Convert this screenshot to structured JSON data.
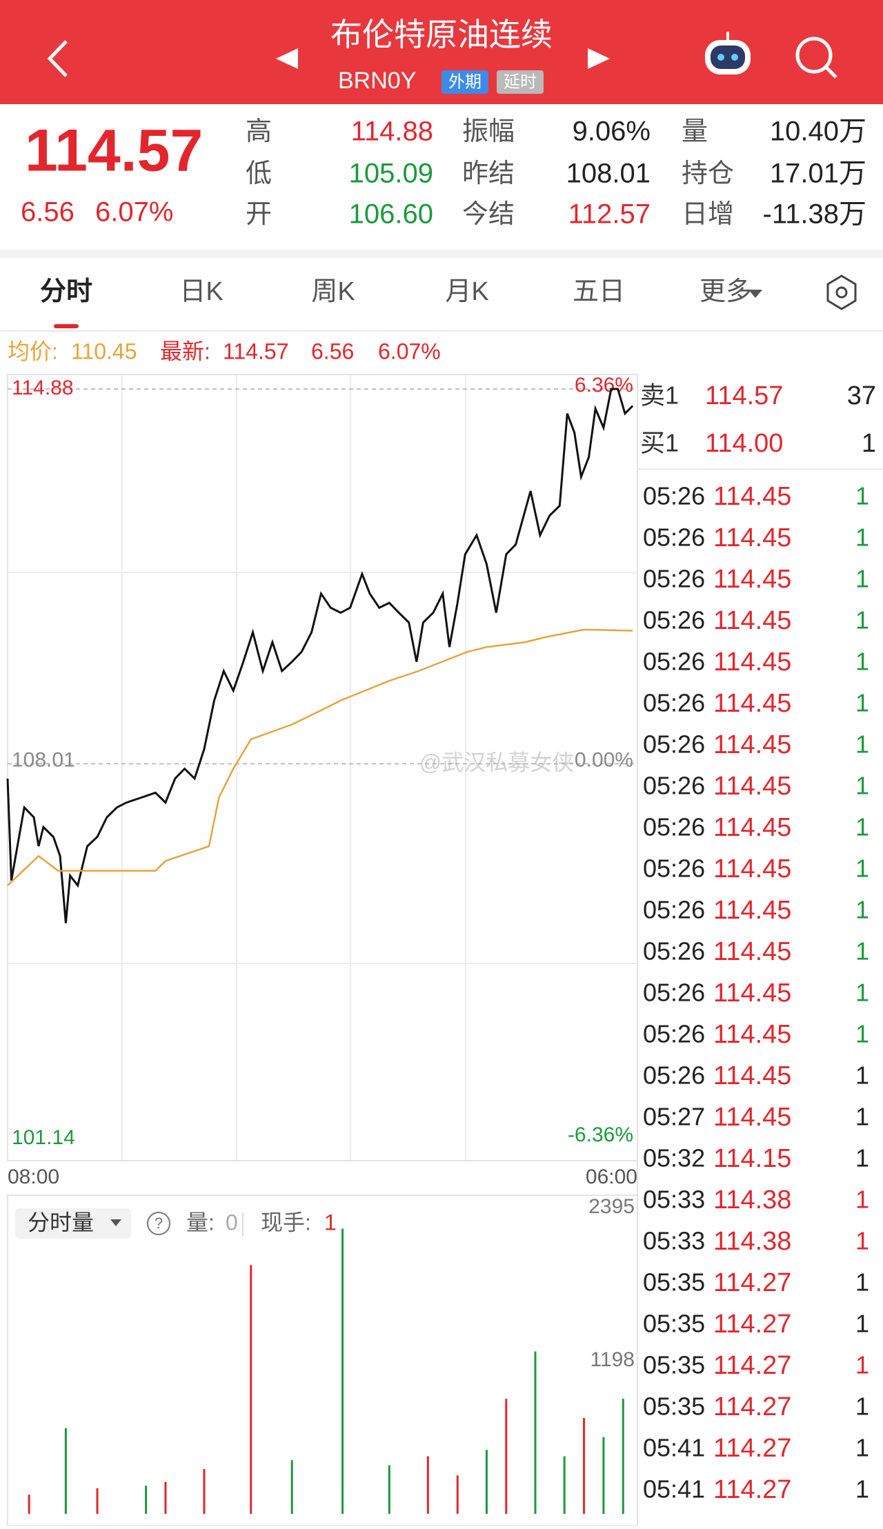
{
  "header": {
    "title": "布伦特原油连续",
    "code": "BRN0Y",
    "tags": [
      "外期",
      "延时"
    ]
  },
  "quote": {
    "price": "114.57",
    "change": "6.56",
    "change_pct": "6.07%",
    "stats": [
      [
        {
          "label": "高",
          "value": "114.88",
          "color": "#e3262d"
        },
        {
          "label": "振幅",
          "value": "9.06%"
        },
        {
          "label": "量",
          "value": "10.40万"
        }
      ],
      [
        {
          "label": "低",
          "value": "105.09",
          "color": "#1a9a3a"
        },
        {
          "label": "昨结",
          "value": "108.01"
        },
        {
          "label": "持仓",
          "value": "17.01万"
        }
      ],
      [
        {
          "label": "开",
          "value": "106.60",
          "color": "#1a9a3a"
        },
        {
          "label": "今结",
          "value": "112.57",
          "color": "#e3262d"
        },
        {
          "label": "日增",
          "value": "-11.38万"
        }
      ]
    ]
  },
  "tabs": [
    "分时",
    "日K",
    "周K",
    "月K",
    "五日",
    "更多"
  ],
  "info": {
    "avg_label": "均价:",
    "avg": "110.45",
    "last_label": "最新:",
    "last": "114.57",
    "change": "6.56",
    "change_pct": "6.07%"
  },
  "watermark": "@武汉私募女侠",
  "chart_data": [
    {
      "type": "line",
      "xlim": [
        0,
        1320
      ],
      "xticks": [
        {
          "value": 0,
          "label": "08:00"
        },
        {
          "value": 1320,
          "label": "06:00"
        }
      ],
      "ylim": [
        101.14,
        114.88
      ],
      "yticks": [
        101.14,
        108.01,
        114.88
      ],
      "y2lim": [
        -6.36,
        6.36
      ],
      "y2ticks": [
        {
          "value": -6.36,
          "label": "-6.36%"
        },
        {
          "value": 0,
          "label": "0.00%"
        },
        {
          "value": 6.36,
          "label": "6.36%"
        }
      ],
      "series": [
        {
          "color": "#111111",
          "x": [
            0,
            8,
            24,
            35,
            55,
            65,
            75,
            96,
            110,
            122,
            131,
            147,
            167,
            188,
            208,
            229,
            249,
            280,
            310,
            331,
            351,
            371,
            392,
            412,
            433,
            453,
            473,
            494,
            514,
            535,
            555,
            575,
            596,
            616,
            637,
            657,
            677,
            698,
            718,
            743,
            759,
            779,
            800,
            820,
            841,
            857,
            871,
            892,
            912,
            926,
            943,
            959,
            983,
            1004,
            1024,
            1045,
            1065,
            1096,
            1116,
            1136,
            1157,
            1173,
            1188,
            1202,
            1218,
            1232,
            1249,
            1265,
            1279,
            1294,
            1310
          ],
          "values": [
            107.74,
            105.87,
            106.67,
            107.21,
            107.03,
            106.5,
            106.85,
            106.67,
            106.32,
            105.09,
            105.96,
            105.78,
            106.5,
            106.67,
            107.03,
            107.21,
            107.3,
            107.39,
            107.48,
            107.3,
            107.74,
            107.92,
            107.74,
            108.28,
            109.17,
            109.71,
            109.35,
            109.88,
            110.42,
            109.71,
            110.24,
            109.71,
            109.88,
            110.06,
            110.42,
            111.13,
            110.87,
            110.78,
            110.87,
            111.49,
            111.13,
            110.87,
            110.96,
            110.78,
            110.6,
            109.88,
            110.6,
            110.78,
            111.13,
            110.15,
            110.96,
            111.85,
            112.2,
            111.67,
            110.78,
            111.85,
            112.03,
            113.01,
            112.2,
            112.56,
            112.74,
            114.43,
            114.08,
            113.27,
            113.63,
            114.52,
            114.17,
            114.88,
            114.88,
            114.43,
            114.57
          ]
        },
        {
          "color": "#e8a33c",
          "x": [
            0,
            65,
            106,
            310,
            331,
            422,
            443,
            473,
            510,
            596,
            657,
            698,
            800,
            861,
            963,
            1004,
            1085,
            1126,
            1208,
            1310
          ],
          "values": [
            105.78,
            106.32,
            106.05,
            106.05,
            106.23,
            106.5,
            107.39,
            107.92,
            108.46,
            108.73,
            108.99,
            109.17,
            109.53,
            109.71,
            110.06,
            110.15,
            110.24,
            110.33,
            110.47,
            110.45
          ]
        }
      ]
    },
    {
      "type": "bar",
      "xlim": [
        0,
        1320
      ],
      "ylim": [
        0,
        2395
      ],
      "yticks": [
        1198,
        2395
      ],
      "series": [
        {
          "color": "#e3262d",
          "x": [
            45,
            188,
            331,
            412,
            510,
            881,
            943,
            1045,
            1208
          ],
          "values": [
            150,
            200,
            250,
            350,
            1946,
            450,
            300,
            900,
            750
          ]
        },
        {
          "color": "#1a9a3a",
          "x": [
            122,
            290,
            596,
            702,
            800,
            1004,
            1106,
            1167,
            1249,
            1290
          ],
          "values": [
            670,
            220,
            420,
            2230,
            380,
            500,
            1270,
            450,
            600,
            900
          ]
        }
      ]
    }
  ],
  "volume_header": {
    "selector": "分时量",
    "vol_label": "量:",
    "vol": "0",
    "hand_label": "现手:",
    "hand": "1"
  },
  "order_book": [
    {
      "label": "卖1",
      "price": "114.57",
      "volume": "37"
    },
    {
      "label": "买1",
      "price": "114.00",
      "volume": "1"
    }
  ],
  "trades": [
    {
      "time": "05:26",
      "price": "114.45",
      "volume": "1",
      "volume_color": "#1a9a3a"
    },
    {
      "time": "05:26",
      "price": "114.45",
      "volume": "1",
      "volume_color": "#1a9a3a"
    },
    {
      "time": "05:26",
      "price": "114.45",
      "volume": "1",
      "volume_color": "#1a9a3a"
    },
    {
      "time": "05:26",
      "price": "114.45",
      "volume": "1",
      "volume_color": "#1a9a3a"
    },
    {
      "time": "05:26",
      "price": "114.45",
      "volume": "1",
      "volume_color": "#1a9a3a"
    },
    {
      "time": "05:26",
      "price": "114.45",
      "volume": "1",
      "volume_color": "#1a9a3a"
    },
    {
      "time": "05:26",
      "price": "114.45",
      "volume": "1",
      "volume_color": "#1a9a3a"
    },
    {
      "time": "05:26",
      "price": "114.45",
      "volume": "1",
      "volume_color": "#1a9a3a"
    },
    {
      "time": "05:26",
      "price": "114.45",
      "volume": "1",
      "volume_color": "#1a9a3a"
    },
    {
      "time": "05:26",
      "price": "114.45",
      "volume": "1",
      "volume_color": "#1a9a3a"
    },
    {
      "time": "05:26",
      "price": "114.45",
      "volume": "1",
      "volume_color": "#1a9a3a"
    },
    {
      "time": "05:26",
      "price": "114.45",
      "volume": "1",
      "volume_color": "#1a9a3a"
    },
    {
      "time": "05:26",
      "price": "114.45",
      "volume": "1",
      "volume_color": "#1a9a3a"
    },
    {
      "time": "05:26",
      "price": "114.45",
      "volume": "1",
      "volume_color": "#1a9a3a"
    },
    {
      "time": "05:26",
      "price": "114.45",
      "volume": "1",
      "volume_color": "#222222"
    },
    {
      "time": "05:27",
      "price": "114.45",
      "volume": "1",
      "volume_color": "#222222"
    },
    {
      "time": "05:32",
      "price": "114.15",
      "volume": "1",
      "volume_color": "#222222"
    },
    {
      "time": "05:33",
      "price": "114.38",
      "volume": "1",
      "volume_color": "#e3262d"
    },
    {
      "time": "05:33",
      "price": "114.38",
      "volume": "1",
      "volume_color": "#e3262d"
    },
    {
      "time": "05:35",
      "price": "114.27",
      "volume": "1",
      "volume_color": "#222222"
    },
    {
      "time": "05:35",
      "price": "114.27",
      "volume": "1",
      "volume_color": "#222222"
    },
    {
      "time": "05:35",
      "price": "114.27",
      "volume": "1",
      "volume_color": "#e3262d"
    },
    {
      "time": "05:35",
      "price": "114.27",
      "volume": "1",
      "volume_color": "#222222"
    },
    {
      "time": "05:41",
      "price": "114.27",
      "volume": "1",
      "volume_color": "#222222"
    },
    {
      "time": "05:41",
      "price": "114.27",
      "volume": "1",
      "volume_color": "#222222"
    }
  ]
}
